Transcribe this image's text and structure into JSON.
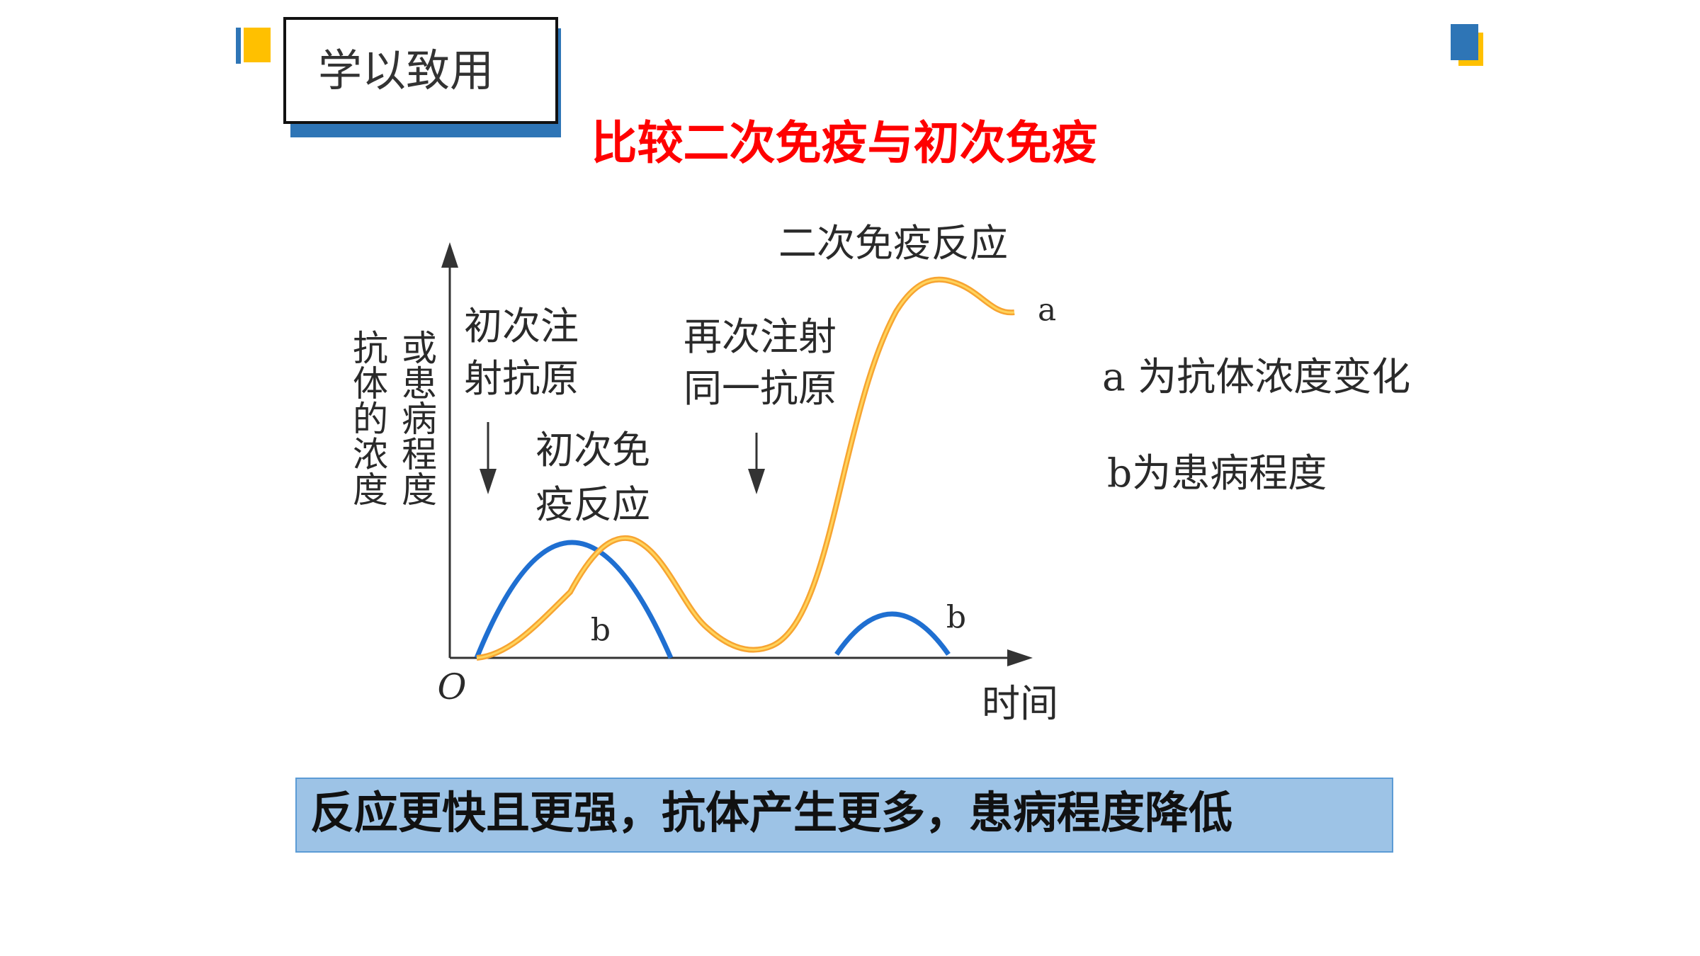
{
  "header": {
    "title": "学以致用"
  },
  "slide": {
    "heading": "比较二次免疫与初次免疫"
  },
  "figure": {
    "y_axis_label": [
      "抗体的浓度",
      "或患病程度"
    ],
    "origin": "O",
    "x_axis_label": "时间",
    "first_injection": [
      "初次注",
      "射抗原"
    ],
    "primary_response": [
      "初次免",
      "疫反应"
    ],
    "second_injection": [
      "再次注射",
      "同一抗原"
    ],
    "secondary_response": "二次免疫反应",
    "curve_labels": [
      "a",
      "b",
      "b"
    ]
  },
  "legend": [
    "a 为抗体浓度变化",
    "b为患病程度"
  ],
  "summary": "反应更快且更强，抗体产生更多，患病程度降低"
}
